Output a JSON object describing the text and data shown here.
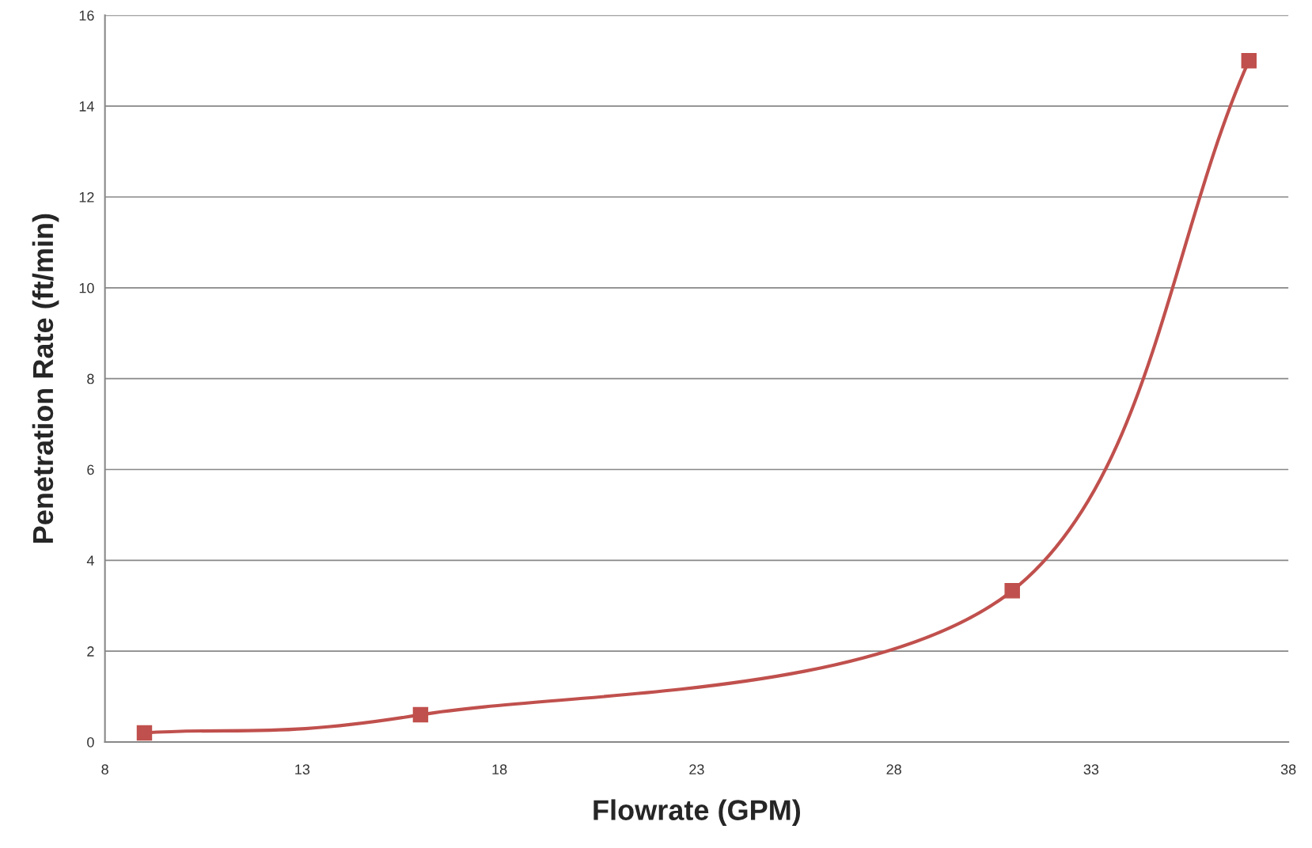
{
  "chart_data": {
    "type": "line",
    "xlabel": "Flowrate (GPM)",
    "ylabel": "Penetration Rate (ft/min)",
    "x": [
      9,
      16,
      31,
      37
    ],
    "series": [
      {
        "color": "#c0504d",
        "values": [
          0.2,
          0.6,
          3.33,
          15
        ]
      }
    ],
    "xlim": [
      8,
      38
    ],
    "xticks": [
      8,
      13,
      18,
      23,
      28,
      33,
      38
    ],
    "ylim": [
      0,
      16
    ],
    "yticks": [
      0,
      2,
      4,
      6,
      8,
      10,
      12,
      14,
      16
    ],
    "grid": "y",
    "marker": "square",
    "line_style": "solid",
    "legend": false
  }
}
